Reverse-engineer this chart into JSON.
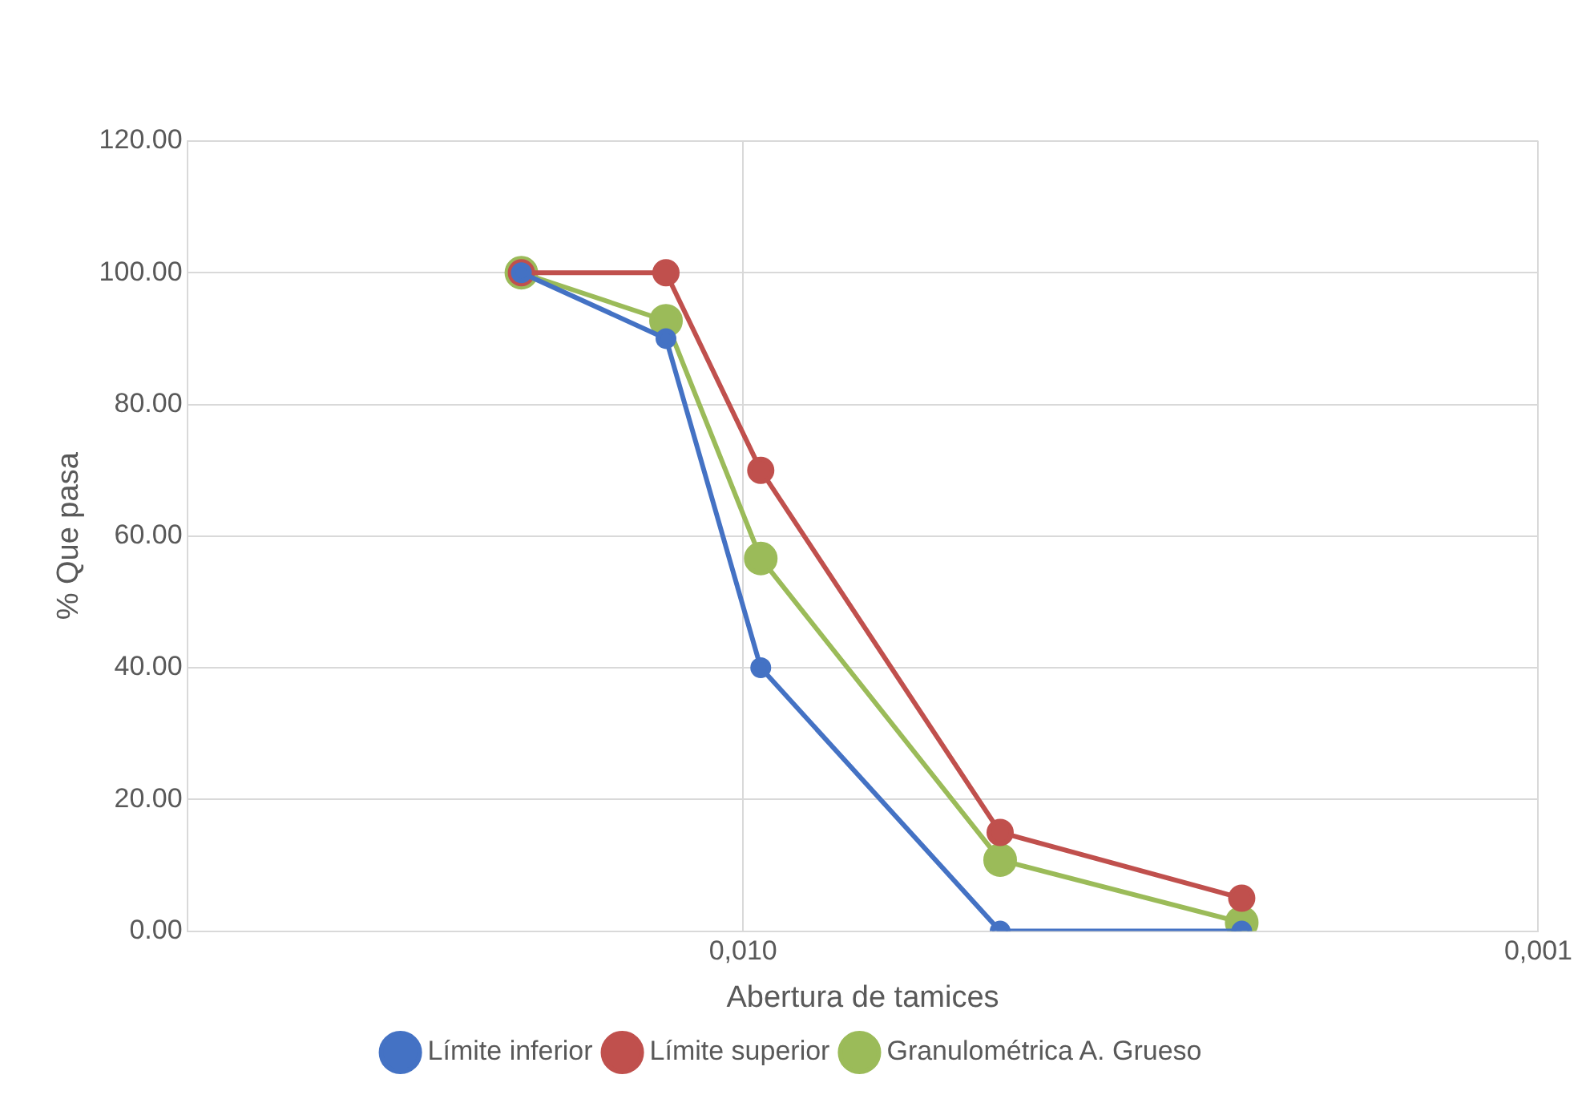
{
  "chart_data": {
    "type": "line",
    "xlabel": "Abertura de tamices",
    "ylabel": "% Que pasa",
    "x": [
      0.019,
      0.0125,
      0.0095,
      0.00475,
      0.00236
    ],
    "series": [
      {
        "name": "Límite inferior",
        "color": "#4472c4",
        "values": [
          100,
          90,
          40,
          0,
          0
        ]
      },
      {
        "name": "Límite superior",
        "color": "#c0504d",
        "values": [
          100,
          100,
          70,
          15,
          5
        ]
      },
      {
        "name": "Granulométrica A. Grueso",
        "color": "#9bbb59",
        "values": [
          100,
          92.7,
          56.6,
          10.8,
          1.3
        ]
      }
    ],
    "log": "x",
    "xlim": [
      0.05,
      0.001
    ],
    "xticks": [
      {
        "value": 0.01,
        "label": "0,010"
      },
      {
        "value": 0.001,
        "label": "0,001"
      }
    ],
    "ylim": [
      0,
      120
    ],
    "yticks": [
      {
        "value": 0,
        "label": "0.00"
      },
      {
        "value": 20,
        "label": "20.00"
      },
      {
        "value": 40,
        "label": "40.00"
      },
      {
        "value": 60,
        "label": "60.00"
      },
      {
        "value": 80,
        "label": "80.00"
      },
      {
        "value": 100,
        "label": "100.00"
      },
      {
        "value": 120,
        "label": "120.00"
      }
    ],
    "grid": true,
    "legend": "bottom",
    "marker": "circle",
    "line_style": "solid"
  }
}
